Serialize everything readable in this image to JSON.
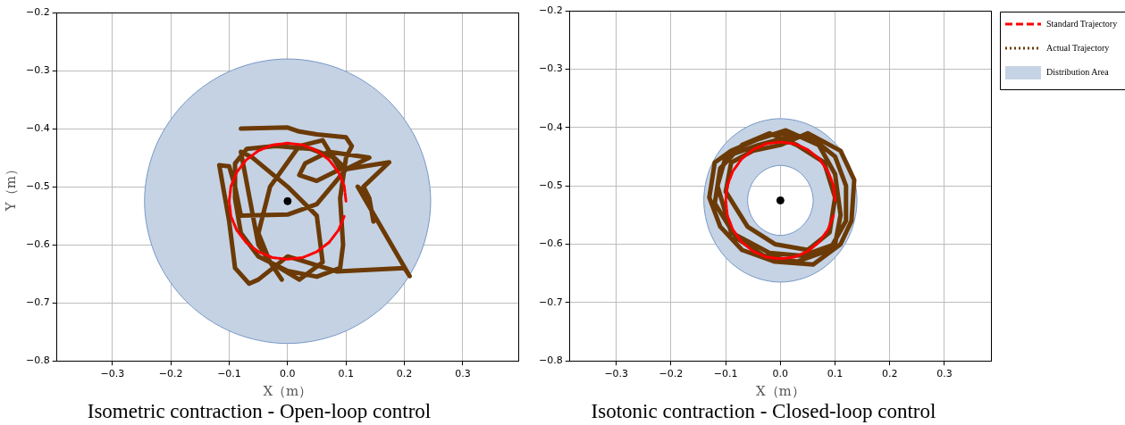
{
  "chart_data": [
    {
      "type": "line",
      "title": "Isometric contraction - Open-loop control",
      "xlabel": "X（m）",
      "ylabel": "Y（m）",
      "xlim": [
        -0.395,
        0.395
      ],
      "ylim": [
        -0.8,
        -0.2
      ],
      "xticks": [
        {
          "value": -0.3,
          "label": "−0.3"
        },
        {
          "value": -0.2,
          "label": "−0.2"
        },
        {
          "value": -0.1,
          "label": "−0.1"
        },
        {
          "value": 0,
          "label": "0.0"
        },
        0.1,
        0.2,
        0.3
      ],
      "yticks": [
        {
          "value": -0.8,
          "label": "−0.8"
        },
        {
          "value": -0.7,
          "label": "−0.7"
        },
        {
          "value": -0.6,
          "label": "−0.6"
        },
        {
          "value": -0.5,
          "label": "−0.5"
        },
        {
          "value": -0.4,
          "label": "−0.4"
        },
        {
          "value": -0.3,
          "label": "−0.3"
        },
        {
          "value": -0.2,
          "label": "−0.2"
        }
      ],
      "grid": true,
      "legend": false,
      "series": [
        {
          "type": "area",
          "color": "#c5d2e3",
          "x": [
            0.245,
            0.226,
            0.173,
            0.094,
            0,
            -0.094,
            -0.173,
            -0.226,
            -0.245,
            -0.226,
            -0.173,
            -0.094,
            0,
            0.094,
            0.173,
            0.226
          ],
          "values": [
            -0.525,
            -0.431,
            -0.352,
            -0.299,
            -0.28,
            -0.299,
            -0.352,
            -0.431,
            -0.525,
            -0.619,
            -0.698,
            -0.751,
            -0.77,
            -0.751,
            -0.698,
            -0.619
          ]
        },
        {
          "type": "line",
          "color": "#ff0000",
          "line_style": "dashed",
          "marker": "none",
          "x": [
            0.1,
            0.097,
            0.087,
            0.071,
            0.05,
            0.026,
            0,
            -0.026,
            -0.05,
            -0.071,
            -0.087,
            -0.097,
            -0.1,
            -0.097,
            -0.087,
            -0.071,
            -0.05,
            -0.026,
            0,
            0.026,
            0.05,
            0.071,
            0.087,
            0.097
          ],
          "values": [
            -0.525,
            -0.499,
            -0.475,
            -0.454,
            -0.438,
            -0.428,
            -0.425,
            -0.428,
            -0.438,
            -0.454,
            -0.475,
            -0.499,
            -0.525,
            -0.551,
            -0.575,
            -0.596,
            -0.612,
            -0.622,
            -0.625,
            -0.622,
            -0.612,
            -0.596,
            -0.575,
            -0.551
          ]
        },
        {
          "type": "line",
          "color": "#6b3a06",
          "line_style": "solid",
          "marker": "none",
          "x": [
            -0.08,
            0.0,
            0.02,
            0.05,
            0.1,
            0.11,
            0.1,
            0.09,
            0.095,
            0.09,
            0.05,
            0.0,
            -0.05,
            -0.08,
            -0.09,
            -0.09,
            -0.07,
            -0.02,
            0.04,
            0.08,
            0.1,
            0.174,
            0.13,
            0.14,
            0.147,
            0.14,
            0.12,
            0.209,
            0.2,
            0.085,
            0.0,
            -0.05,
            -0.066,
            -0.09,
            -0.1,
            -0.117,
            -0.1,
            -0.09,
            -0.08,
            0.0,
            0.05,
            0.1,
            0.14,
            0.07,
            0.03,
            0.02,
            0.05,
            0.09,
            0.06,
            0.02,
            -0.03,
            -0.05,
            -0.03,
            0.02,
            0.06,
            0.05,
            0.0,
            -0.06,
            -0.08,
            -0.05,
            -0.01
          ],
          "values": [
            -0.4,
            -0.398,
            -0.405,
            -0.41,
            -0.415,
            -0.43,
            -0.45,
            -0.52,
            -0.6,
            -0.64,
            -0.655,
            -0.645,
            -0.62,
            -0.58,
            -0.52,
            -0.46,
            -0.435,
            -0.43,
            -0.435,
            -0.45,
            -0.47,
            -0.458,
            -0.5,
            -0.52,
            -0.56,
            -0.52,
            -0.5,
            -0.654,
            -0.64,
            -0.646,
            -0.62,
            -0.66,
            -0.667,
            -0.64,
            -0.56,
            -0.463,
            -0.465,
            -0.5,
            -0.55,
            -0.548,
            -0.53,
            -0.47,
            -0.45,
            -0.44,
            -0.46,
            -0.48,
            -0.49,
            -0.47,
            -0.42,
            -0.43,
            -0.5,
            -0.58,
            -0.63,
            -0.66,
            -0.63,
            -0.55,
            -0.5,
            -0.45,
            -0.44,
            -0.6,
            -0.66
          ]
        },
        {
          "type": "scatter",
          "color": "#000000",
          "marker": "circle",
          "x": [
            0
          ],
          "values": [
            -0.525
          ]
        }
      ]
    },
    {
      "type": "line",
      "title": "Isotonic contraction - Closed-loop control",
      "xlabel": "X（m）",
      "xlim": [
        -0.385,
        0.385
      ],
      "ylim": [
        -0.8,
        -0.2
      ],
      "xticks": [
        {
          "value": -0.3,
          "label": "−0.3"
        },
        {
          "value": -0.2,
          "label": "−0.2"
        },
        {
          "value": -0.1,
          "label": "−0.1"
        },
        {
          "value": 0,
          "label": "0.0"
        },
        0.1,
        0.2,
        0.3
      ],
      "yticks": [
        {
          "value": -0.8,
          "label": "−0.8"
        },
        {
          "value": -0.7,
          "label": "−0.7"
        },
        {
          "value": -0.6,
          "label": "−0.6"
        },
        {
          "value": -0.5,
          "label": "−0.5"
        },
        {
          "value": -0.4,
          "label": "−0.4"
        },
        {
          "value": -0.3,
          "label": "−0.3"
        },
        {
          "value": -0.2,
          "label": "−0.2"
        }
      ],
      "grid": true,
      "legend": "top right",
      "series": [
        {
          "type": "line",
          "name": "Standard Trajectory",
          "color": "#ff0000",
          "line_style": "dashed",
          "marker": "none",
          "x": [
            0.1,
            0.097,
            0.087,
            0.071,
            0.05,
            0.026,
            0,
            -0.026,
            -0.05,
            -0.071,
            -0.087,
            -0.097,
            -0.1,
            -0.097,
            -0.087,
            -0.071,
            -0.05,
            -0.026,
            0,
            0.026,
            0.05,
            0.071,
            0.087,
            0.097
          ],
          "values": [
            -0.525,
            -0.499,
            -0.475,
            -0.454,
            -0.438,
            -0.428,
            -0.425,
            -0.428,
            -0.438,
            -0.454,
            -0.475,
            -0.499,
            -0.525,
            -0.551,
            -0.575,
            -0.596,
            -0.612,
            -0.622,
            -0.625,
            -0.622,
            -0.612,
            -0.596,
            -0.575,
            -0.551
          ]
        },
        {
          "type": "line",
          "name": "Actual Trajectory",
          "color": "#6b3a06",
          "line_style": "solid",
          "marker": "none",
          "x": [
            0,
            0.06,
            0.1,
            0.12,
            0.12,
            0.09,
            0.03,
            -0.03,
            -0.08,
            -0.12,
            -0.11,
            -0.07,
            -0.02,
            0.03,
            0.08,
            0.1,
            0.09,
            0.05,
            -0.01,
            -0.06,
            -0.1,
            -0.09,
            -0.05,
            0.0,
            0.05,
            0.11,
            0.135,
            0.13,
            0.11,
            0.06,
            -0.01,
            -0.07,
            -0.11,
            -0.13,
            -0.12,
            -0.09,
            -0.04,
            0.01,
            0.07,
            0.1,
            0.11,
            0.1,
            0.04,
            -0.02,
            -0.09,
            -0.115,
            -0.1,
            -0.04,
            0.02
          ],
          "values": [
            -0.41,
            -0.42,
            -0.45,
            -0.5,
            -0.56,
            -0.61,
            -0.63,
            -0.62,
            -0.59,
            -0.53,
            -0.47,
            -0.43,
            -0.41,
            -0.43,
            -0.46,
            -0.52,
            -0.58,
            -0.61,
            -0.6,
            -0.57,
            -0.51,
            -0.46,
            -0.44,
            -0.43,
            -0.41,
            -0.44,
            -0.49,
            -0.56,
            -0.6,
            -0.635,
            -0.63,
            -0.61,
            -0.57,
            -0.52,
            -0.46,
            -0.44,
            -0.42,
            -0.405,
            -0.43,
            -0.48,
            -0.55,
            -0.6,
            -0.62,
            -0.615,
            -0.58,
            -0.5,
            -0.45,
            -0.43,
            -0.415
          ]
        },
        {
          "type": "area",
          "name": "Distribution Area",
          "color": "#c5d3e4",
          "x": [
            0.14,
            0.129,
            0.099,
            0.054,
            0,
            -0.054,
            -0.099,
            -0.129,
            -0.14,
            -0.129,
            -0.099,
            -0.054,
            0,
            0.054,
            0.099,
            0.129,
            null,
            0.06,
            0.055,
            0.042,
            0.023,
            0,
            -0.023,
            -0.042,
            -0.055,
            -0.06,
            -0.055,
            -0.042,
            -0.023,
            0,
            0.023,
            0.042,
            0.055
          ],
          "values": [
            -0.525,
            -0.471,
            -0.426,
            -0.396,
            -0.385,
            -0.396,
            -0.426,
            -0.471,
            -0.525,
            -0.579,
            -0.624,
            -0.654,
            -0.665,
            -0.654,
            -0.624,
            -0.579,
            null,
            -0.525,
            -0.502,
            -0.483,
            -0.47,
            -0.465,
            -0.47,
            -0.483,
            -0.502,
            -0.525,
            -0.548,
            -0.567,
            -0.58,
            -0.585,
            -0.58,
            -0.567,
            -0.548
          ]
        },
        {
          "type": "scatter",
          "color": "#000000",
          "marker": "circle",
          "x": [
            0
          ],
          "values": [
            -0.525
          ]
        }
      ]
    }
  ]
}
